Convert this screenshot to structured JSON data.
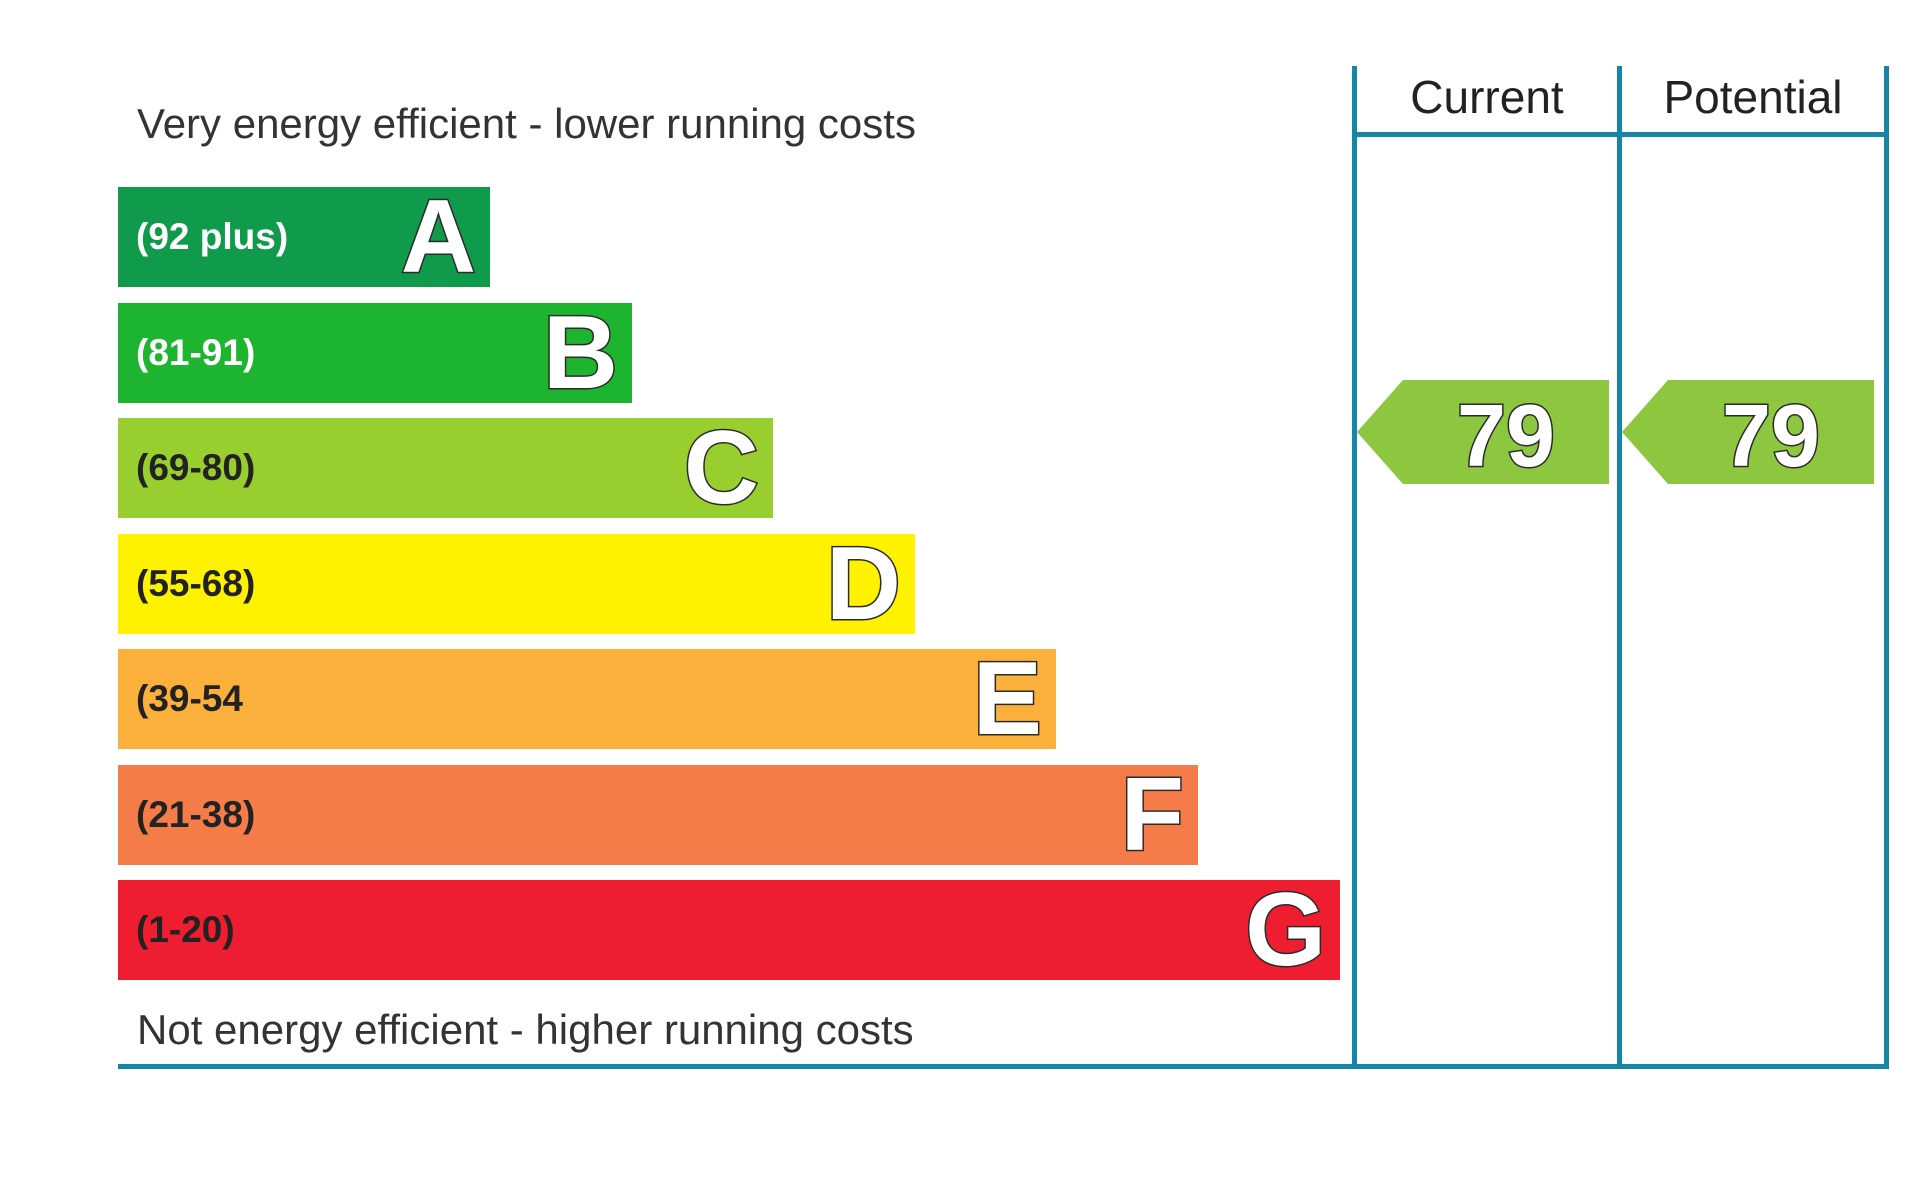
{
  "chart_data": {
    "type": "bar",
    "top_caption": "Very energy efficient - lower running costs",
    "bottom_caption": "Not energy efficient - higher running costs",
    "bands": [
      {
        "letter": "A",
        "range": "(92 plus)",
        "color": "#109a4b",
        "range_color": "#ffffff"
      },
      {
        "letter": "B",
        "range": "(81-91)",
        "color": "#1db52f",
        "range_color": "#ffffff"
      },
      {
        "letter": "C",
        "range": "(69-80)",
        "color": "#98cf2f",
        "range_color": "#222222"
      },
      {
        "letter": "D",
        "range": "(55-68)",
        "color": "#fff200",
        "range_color": "#222222"
      },
      {
        "letter": "E",
        "range": "(39-54",
        "color": "#fbb03b",
        "range_color": "#222222"
      },
      {
        "letter": "F",
        "range": "(21-38)",
        "color": "#f47c49",
        "range_color": "#222222"
      },
      {
        "letter": "G",
        "range": "(1-20)",
        "color": "#ee1d2f",
        "range_color": "#222222"
      }
    ],
    "columns": [
      {
        "header": "Current",
        "value": 79,
        "value_label": "79",
        "band": "C",
        "color": "#8dc63f"
      },
      {
        "header": "Potential",
        "value": 79,
        "value_label": "79",
        "band": "C",
        "color": "#8dc63f"
      }
    ],
    "frame_color": "#1786a6"
  }
}
